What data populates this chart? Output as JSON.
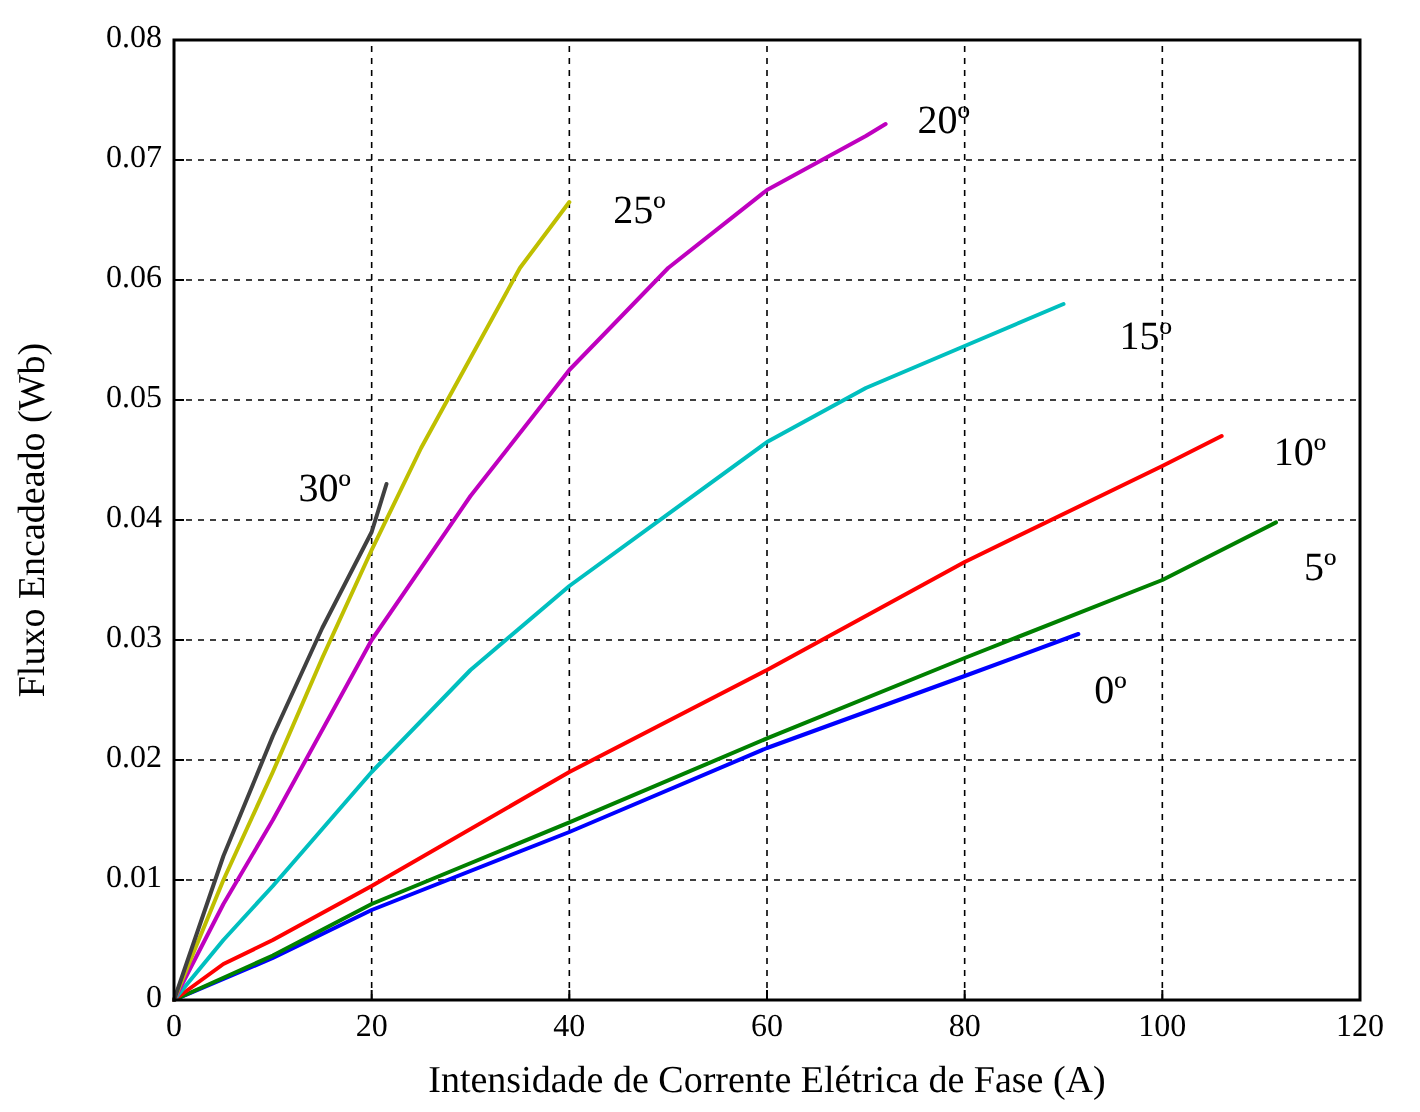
{
  "chart_data": {
    "type": "line",
    "xlabel": "Intensidade de Corrente Elétrica de Fase (A)",
    "ylabel": "Fluxo Encadeado (Wb)",
    "xlim": [
      0,
      120
    ],
    "xticks": [
      0,
      20,
      40,
      60,
      80,
      100,
      120
    ],
    "ylim": [
      0,
      0.08
    ],
    "yticks": [
      0,
      0.01,
      0.02,
      0.03,
      0.04,
      0.05,
      0.06,
      0.07,
      0.08
    ],
    "grid": true,
    "line_style": "solid",
    "series": [
      {
        "name": "0º",
        "color": "#0000ff",
        "x": [
          0,
          10,
          20,
          40,
          60,
          80,
          91.5
        ],
        "values": [
          0,
          0.0035,
          0.0075,
          0.014,
          0.021,
          0.027,
          0.0305
        ]
      },
      {
        "name": "5º",
        "color": "#008000",
        "x": [
          0,
          10,
          20,
          40,
          60,
          80,
          100,
          111.5
        ],
        "values": [
          0,
          0.0037,
          0.008,
          0.0148,
          0.0218,
          0.0285,
          0.035,
          0.0398
        ]
      },
      {
        "name": "10º",
        "color": "#ff0000",
        "x": [
          0,
          5,
          10,
          20,
          40,
          60,
          80,
          100,
          106
        ],
        "values": [
          0,
          0.003,
          0.005,
          0.0095,
          0.019,
          0.0275,
          0.0365,
          0.0445,
          0.047
        ]
      },
      {
        "name": "15º",
        "color": "#00bfbf",
        "x": [
          0,
          5,
          10,
          20,
          30,
          40,
          60,
          70,
          80,
          90
        ],
        "values": [
          0,
          0.005,
          0.0095,
          0.019,
          0.0275,
          0.0345,
          0.0465,
          0.051,
          0.0545,
          0.058
        ]
      },
      {
        "name": "20º",
        "color": "#bf00bf",
        "x": [
          0,
          5,
          10,
          20,
          30,
          40,
          50,
          60,
          70,
          72
        ],
        "values": [
          0,
          0.008,
          0.015,
          0.03,
          0.042,
          0.0525,
          0.061,
          0.0675,
          0.072,
          0.073
        ]
      },
      {
        "name": "25º",
        "color": "#bfbf00",
        "x": [
          0,
          5,
          10,
          15,
          20,
          25,
          30,
          35,
          40
        ],
        "values": [
          0,
          0.01,
          0.019,
          0.0285,
          0.0375,
          0.046,
          0.0535,
          0.061,
          0.0665
        ]
      },
      {
        "name": "30º",
        "color": "#404040",
        "x": [
          0,
          5,
          10,
          15,
          20,
          21.5
        ],
        "values": [
          0,
          0.012,
          0.022,
          0.031,
          0.039,
          0.043
        ]
      }
    ]
  }
}
